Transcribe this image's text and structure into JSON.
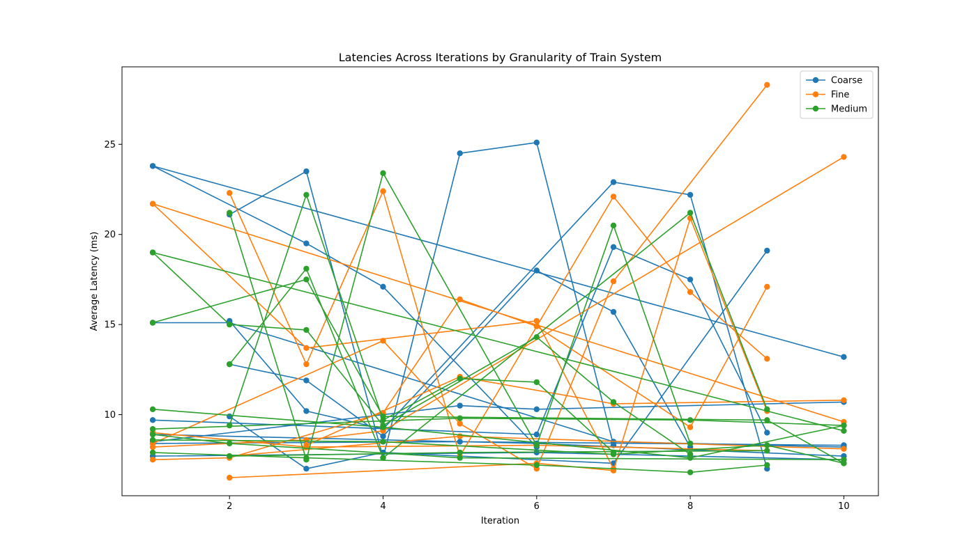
{
  "chart_data": {
    "type": "line",
    "title": "Latencies Across Iterations by Granularity of Train System",
    "xlabel": "Iteration",
    "ylabel": "Average Latency (ms)",
    "xlim": [
      0.6,
      10.45
    ],
    "ylim": [
      5.5,
      29.3
    ],
    "xticks": [
      2,
      4,
      6,
      8,
      10
    ],
    "yticks": [
      10,
      15,
      20,
      25
    ],
    "grid": false,
    "legend_position": "top-right",
    "series": [
      {
        "name": "Coarse",
        "color": "#1f77b4",
        "lines": [
          [
            [
              1,
              23.8
            ],
            [
              10,
              13.2
            ]
          ],
          [
            [
              1,
              23.8
            ],
            [
              3,
              19.5
            ],
            [
              4,
              17.1
            ],
            [
              6,
              8.2
            ]
          ],
          [
            [
              2,
              21.1
            ],
            [
              3,
              23.5
            ],
            [
              4,
              7.6
            ],
            [
              5,
              24.5
            ],
            [
              6,
              25.1
            ],
            [
              7,
              8.3
            ]
          ],
          [
            [
              2,
              15.2
            ],
            [
              3,
              10.2
            ],
            [
              4,
              9.2
            ],
            [
              7,
              22.9
            ],
            [
              8,
              22.2
            ],
            [
              9,
              7.0
            ]
          ],
          [
            [
              2,
              12.8
            ],
            [
              3,
              11.9
            ],
            [
              4,
              8.8
            ],
            [
              6,
              18.0
            ],
            [
              7,
              15.7
            ],
            [
              8,
              8.2
            ]
          ],
          [
            [
              1,
              9.7
            ],
            [
              6,
              8.9
            ],
            [
              7,
              19.3
            ],
            [
              8,
              17.5
            ],
            [
              9,
              9.0
            ]
          ],
          [
            [
              2,
              9.9
            ],
            [
              3,
              7.0
            ],
            [
              4,
              7.9
            ],
            [
              7,
              7.3
            ],
            [
              9,
              19.1
            ]
          ],
          [
            [
              1,
              8.5
            ],
            [
              5,
              10.5
            ],
            [
              6,
              10.3
            ],
            [
              10,
              10.7
            ]
          ],
          [
            [
              1,
              8.4
            ],
            [
              5,
              8.5
            ],
            [
              10,
              8.3
            ]
          ],
          [
            [
              1,
              7.7
            ],
            [
              6,
              7.9
            ],
            [
              10,
              7.5
            ]
          ],
          [
            [
              1,
              15.1
            ],
            [
              2,
              15.1
            ],
            [
              7,
              8.5
            ],
            [
              10,
              8.2
            ]
          ],
          [
            [
              1,
              8.9
            ],
            [
              6,
              8.4
            ],
            [
              10,
              7.7
            ]
          ]
        ]
      },
      {
        "name": "Fine",
        "color": "#ff7f0e",
        "lines": [
          [
            [
              1,
              21.7
            ],
            [
              10,
              9.6
            ]
          ],
          [
            [
              1,
              21.7
            ],
            [
              3,
              13.7
            ],
            [
              6,
              15.2
            ],
            [
              7,
              7.0
            ]
          ],
          [
            [
              2,
              22.3
            ],
            [
              3,
              12.8
            ],
            [
              4,
              22.4
            ],
            [
              5,
              7.7
            ],
            [
              7,
              22.1
            ],
            [
              8,
              16.8
            ],
            [
              9,
              13.1
            ]
          ],
          [
            [
              2,
              6.5
            ],
            [
              6,
              7.3
            ],
            [
              7,
              6.9
            ],
            [
              8,
              20.9
            ],
            [
              9,
              10.2
            ]
          ],
          [
            [
              1,
              8.4
            ],
            [
              4,
              14.1
            ],
            [
              5,
              9.5
            ],
            [
              6,
              7.0
            ],
            [
              7,
              17.4
            ],
            [
              9,
              28.3
            ]
          ],
          [
            [
              1,
              7.5
            ],
            [
              2,
              7.6
            ],
            [
              4,
              10.1
            ],
            [
              5,
              16.4
            ],
            [
              6,
              14.9
            ],
            [
              8,
              9.3
            ],
            [
              9,
              17.1
            ]
          ],
          [
            [
              1,
              8.2
            ],
            [
              3,
              8.6
            ],
            [
              4,
              9.1
            ],
            [
              10,
              24.3
            ]
          ],
          [
            [
              3,
              8.3
            ],
            [
              5,
              12.1
            ],
            [
              7,
              10.6
            ],
            [
              10,
              10.8
            ]
          ],
          [
            [
              2,
              7.7
            ],
            [
              5,
              8.8
            ],
            [
              10,
              8.1
            ]
          ],
          [
            [
              1,
              9.0
            ],
            [
              3,
              8.2
            ],
            [
              6,
              8.3
            ],
            [
              9,
              8.0
            ]
          ]
        ]
      },
      {
        "name": "Medium",
        "color": "#2ca02c",
        "lines": [
          [
            [
              1,
              19.0
            ],
            [
              10,
              9.1
            ]
          ],
          [
            [
              1,
              19.0
            ],
            [
              2,
              15.0
            ],
            [
              3,
              14.7
            ],
            [
              4,
              9.4
            ],
            [
              6,
              14.3
            ],
            [
              7,
              10.7
            ],
            [
              8,
              7.8
            ]
          ],
          [
            [
              2,
              21.2
            ],
            [
              3,
              7.5
            ],
            [
              4,
              23.4
            ],
            [
              6,
              8.3
            ],
            [
              7,
              20.5
            ],
            [
              8,
              8.4
            ]
          ],
          [
            [
              2,
              12.8
            ],
            [
              3,
              18.1
            ],
            [
              4,
              7.6
            ],
            [
              8,
              21.2
            ],
            [
              9,
              10.3
            ]
          ],
          [
            [
              2,
              9.4
            ],
            [
              3,
              22.2
            ],
            [
              4,
              9.7
            ],
            [
              5,
              12.0
            ],
            [
              6,
              11.8
            ],
            [
              7,
              7.9
            ]
          ],
          [
            [
              1,
              15.1
            ],
            [
              3,
              17.5
            ],
            [
              4,
              9.9
            ],
            [
              9,
              9.7
            ],
            [
              10,
              7.3
            ]
          ],
          [
            [
              1,
              10.3
            ],
            [
              4,
              9.3
            ],
            [
              8,
              7.6
            ],
            [
              10,
              9.4
            ]
          ],
          [
            [
              1,
              9.2
            ],
            [
              5,
              9.8
            ],
            [
              8,
              9.7
            ],
            [
              10,
              9.4
            ]
          ],
          [
            [
              1,
              7.9
            ],
            [
              3,
              7.6
            ],
            [
              6,
              7.2
            ],
            [
              8,
              6.8
            ],
            [
              9,
              7.2
            ]
          ],
          [
            [
              1,
              8.9
            ],
            [
              2,
              8.4
            ],
            [
              5,
              7.6
            ],
            [
              10,
              7.5
            ]
          ],
          [
            [
              1,
              8.6
            ],
            [
              4,
              8.5
            ],
            [
              7,
              7.8
            ],
            [
              9,
              8.3
            ],
            [
              10,
              7.3
            ]
          ],
          [
            [
              2,
              7.7
            ],
            [
              5,
              7.9
            ],
            [
              9,
              8.0
            ]
          ]
        ]
      }
    ]
  }
}
